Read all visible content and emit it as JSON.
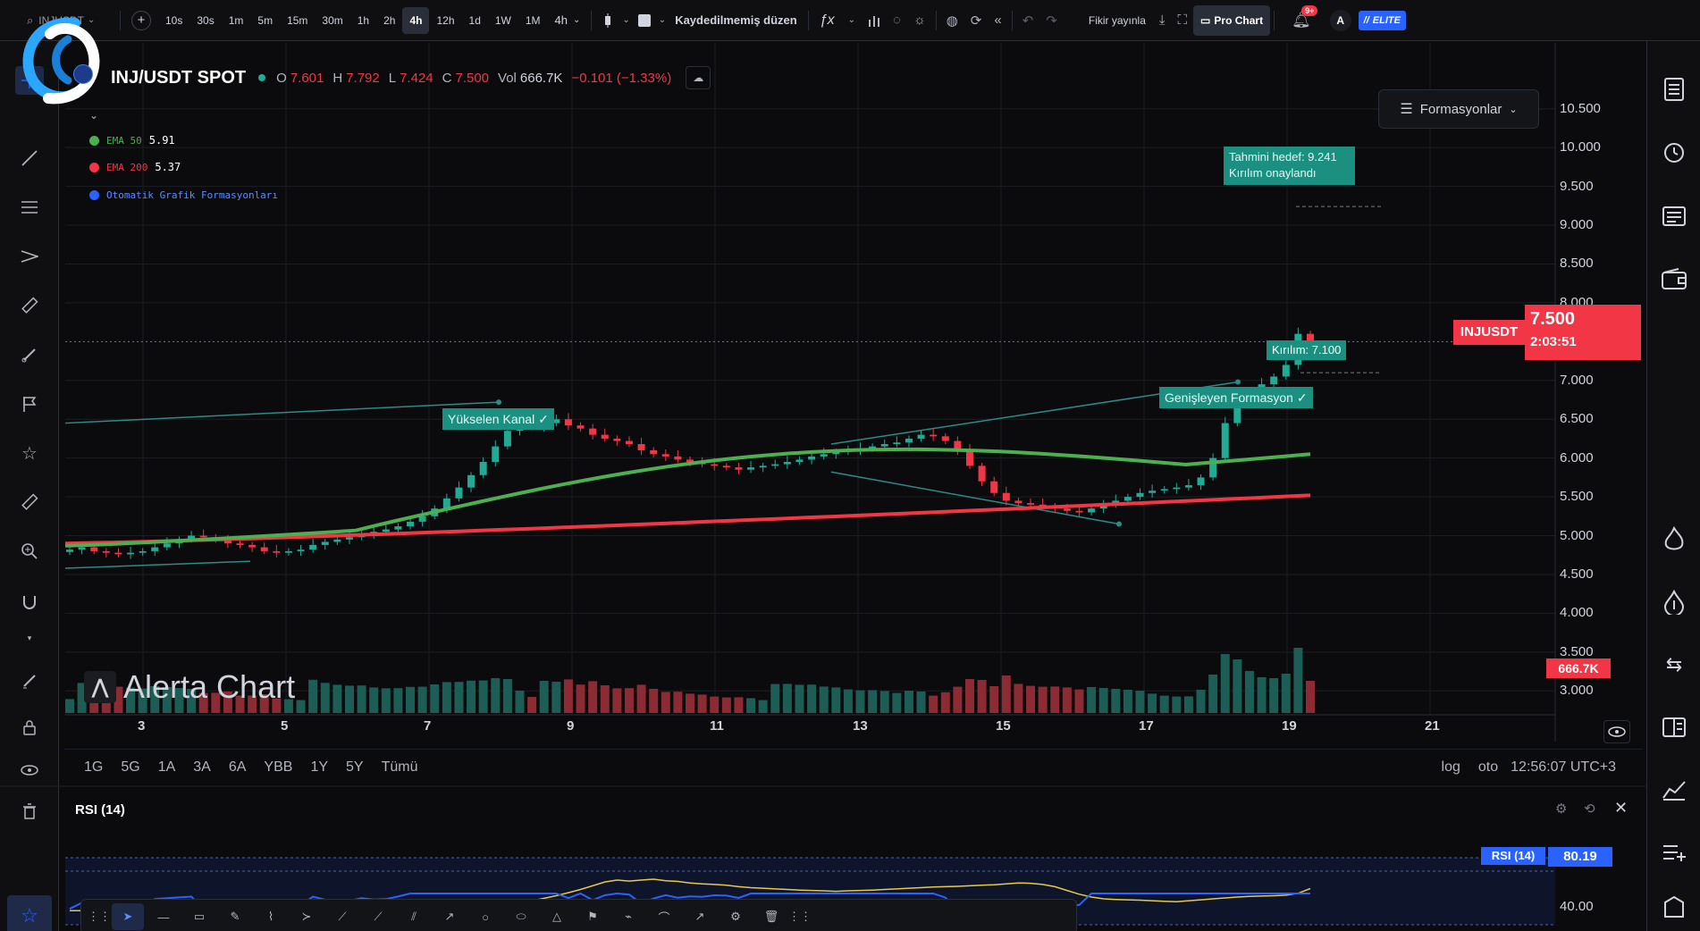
{
  "topbar": {
    "symbol": "INJUSDT",
    "intervals": [
      "10s",
      "30s",
      "1m",
      "5m",
      "15m",
      "30m",
      "1h",
      "2h",
      "4h",
      "12h",
      "1d",
      "1W",
      "1M"
    ],
    "active_interval": "4h",
    "interval_dropdown": "4h",
    "layout_label": "Kaydedilmemiş düzen",
    "fx_label": "ƒx",
    "publish_label": "Fikir yayınla",
    "pro_chart_label": "Pro Chart",
    "notif_badge": "9+",
    "avatar_letter": "A",
    "elite_label": "ELITE"
  },
  "chart_header": {
    "symbol_title": "INJ/USDT SPOT",
    "o_label": "O",
    "o_value": "7.601",
    "h_label": "H",
    "h_value": "7.792",
    "l_label": "L",
    "l_value": "7.424",
    "c_label": "C",
    "c_value": "7.500",
    "vol_label": "Vol",
    "vol_value": "666.7K",
    "change": "−0.101 (−1.33%)"
  },
  "legend": [
    {
      "name": "EMA 50",
      "value": "5.91",
      "color": "#4caf50"
    },
    {
      "name": "EMA 200",
      "value": "5.37",
      "color": "#f23645"
    },
    {
      "name": "Otomatik Grafik Formasyonları",
      "value": "",
      "color": "#2962ff"
    }
  ],
  "formations_button": "Formasyonlar",
  "annotations": {
    "target_line1": "Tahmini hedef: 9.241",
    "target_line2": "Kırılım onaylandı",
    "breakout": "Kırılım: 7.100",
    "expanding": "Genişleyen Formasyon ✓",
    "rising_channel": "Yükselen Kanal ✓"
  },
  "price_axis": [
    "10.500",
    "10.000",
    "9.500",
    "9.000",
    "8.500",
    "8.000",
    "7.000",
    "6.500",
    "6.000",
    "5.500",
    "5.000",
    "4.500",
    "4.000",
    "3.500",
    "3.000"
  ],
  "price_tag": {
    "symbol": "INJUSDT",
    "price": "7.500",
    "countdown": "2:03:51"
  },
  "volume_tag": "666.7K",
  "time_axis": [
    "3",
    "5",
    "7",
    "9",
    "11",
    "13",
    "15",
    "17",
    "19",
    "21"
  ],
  "watermark": "Alerta Chart",
  "range_buttons": [
    "1G",
    "5G",
    "1A",
    "3A",
    "6A",
    "YBB",
    "1Y",
    "5Y",
    "Tümü"
  ],
  "range_right": {
    "log": "log",
    "auto": "oto",
    "clock": "12:56:07 UTC+3"
  },
  "rsi": {
    "title": "RSI (14)",
    "tag_label": "RSI (14)",
    "tag_value": "80.19",
    "level_label": "40.00"
  },
  "chart_data": {
    "type": "candlestick",
    "symbol": "INJ/USDT",
    "interval": "4h",
    "ylim": [
      2.75,
      10.75
    ],
    "x_ticks": [
      "3",
      "5",
      "7",
      "9",
      "11",
      "13",
      "15",
      "17",
      "19",
      "21"
    ],
    "close_series": [
      4.82,
      4.85,
      4.8,
      4.78,
      4.76,
      4.78,
      4.8,
      4.85,
      4.9,
      4.95,
      5.0,
      4.98,
      4.95,
      4.9,
      4.88,
      4.85,
      4.8,
      4.78,
      4.8,
      4.82,
      4.88,
      4.92,
      4.95,
      4.98,
      5.02,
      5.05,
      5.08,
      5.12,
      5.18,
      5.25,
      5.35,
      5.48,
      5.62,
      5.78,
      5.95,
      6.15,
      6.35,
      6.45,
      6.4,
      6.45,
      6.5,
      6.42,
      6.38,
      6.3,
      6.25,
      6.22,
      6.18,
      6.1,
      6.05,
      6.02,
      5.98,
      5.95,
      5.92,
      5.9,
      5.88,
      5.85,
      5.88,
      5.9,
      5.92,
      5.95,
      5.98,
      6.02,
      6.05,
      6.08,
      6.1,
      6.12,
      6.15,
      6.18,
      6.2,
      6.25,
      6.3,
      6.28,
      6.22,
      6.1,
      5.9,
      5.7,
      5.55,
      5.45,
      5.42,
      5.4,
      5.38,
      5.35,
      5.32,
      5.3,
      5.35,
      5.4,
      5.45,
      5.5,
      5.55,
      5.58,
      5.6,
      5.62,
      5.65,
      5.75,
      6.0,
      6.45,
      6.7,
      6.85,
      6.95,
      7.05,
      7.2,
      7.6,
      7.5
    ],
    "ema50": {
      "start": 4.92,
      "end": 6.05,
      "label": "EMA 50",
      "value": 5.91
    },
    "ema200": {
      "start": 4.9,
      "end": 5.52,
      "label": "EMA 200",
      "value": 5.37
    },
    "ohlc_last": {
      "o": 7.601,
      "h": 7.792,
      "l": 7.424,
      "c": 7.5
    },
    "volume_last": "666.7K",
    "rsi_last": 80.19
  }
}
